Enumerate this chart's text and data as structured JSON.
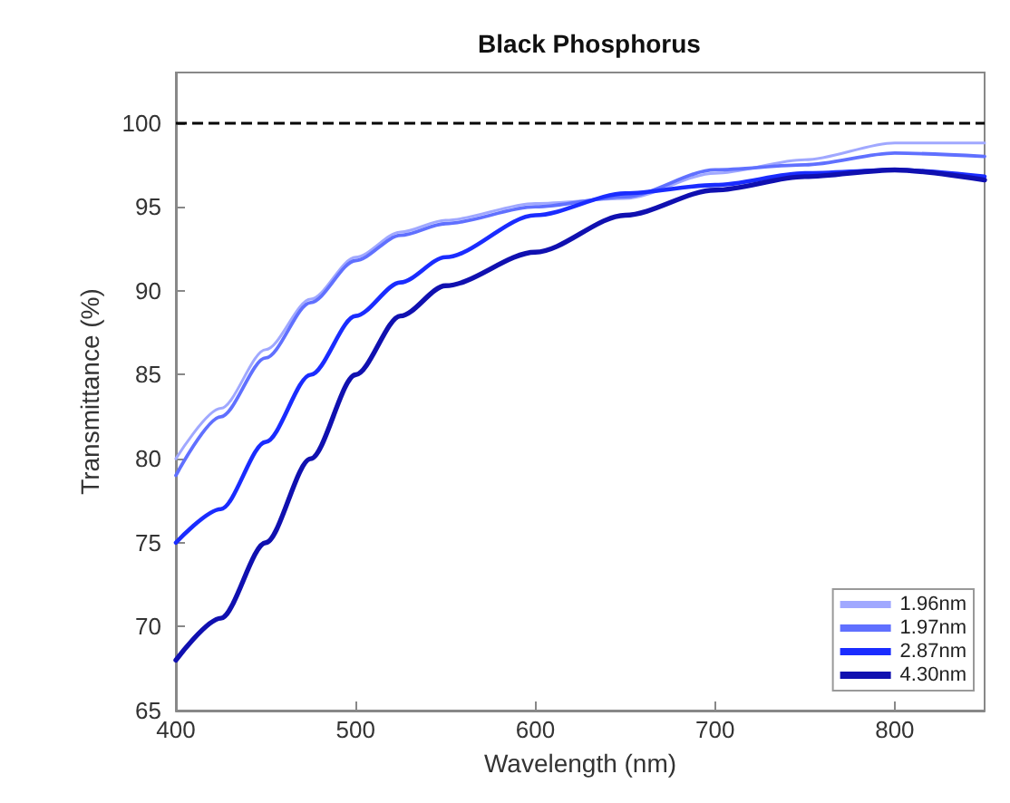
{
  "chart_data": {
    "type": "line",
    "title": "Black Phosphorus",
    "xlabel": "Wavelength (nm)",
    "ylabel": "Transmittance (%)",
    "x": [
      400,
      425,
      450,
      475,
      500,
      525,
      550,
      600,
      650,
      700,
      750,
      800,
      850
    ],
    "series": [
      {
        "name": "1.96nm",
        "color": "#a0a8ff",
        "values": [
          80,
          83,
          86.5,
          89.5,
          92,
          93.5,
          94.2,
          95.2,
          95.5,
          97,
          97.8,
          98.8,
          98.8
        ]
      },
      {
        "name": "1.97nm",
        "color": "#6070ff",
        "values": [
          79,
          82.5,
          86,
          89.3,
          91.8,
          93.3,
          94,
          95,
          95.6,
          97.2,
          97.5,
          98.2,
          98
        ]
      },
      {
        "name": "2.87nm",
        "color": "#1a2cff",
        "values": [
          75,
          77,
          81,
          85,
          88.5,
          90.5,
          92,
          94.5,
          95.8,
          96.3,
          97,
          97.2,
          96.8
        ]
      },
      {
        "name": "4.30nm",
        "color": "#1010b0",
        "values": [
          68,
          70.5,
          75,
          80,
          85,
          88.5,
          90.3,
          92.3,
          94.5,
          96,
          96.8,
          97.2,
          96.6
        ]
      }
    ],
    "xlim": [
      400,
      850
    ],
    "xticks": [
      400,
      500,
      600,
      700,
      800
    ],
    "ylim": [
      65,
      103
    ],
    "yticks": [
      65,
      70,
      75,
      80,
      85,
      90,
      95,
      100
    ],
    "ref_lines": [
      {
        "axis": "y",
        "value": 100,
        "color": "#000000",
        "line_style": "dashed"
      }
    ],
    "grid": false,
    "legend": "bottom right",
    "marker": "none",
    "line_style": "solid"
  }
}
